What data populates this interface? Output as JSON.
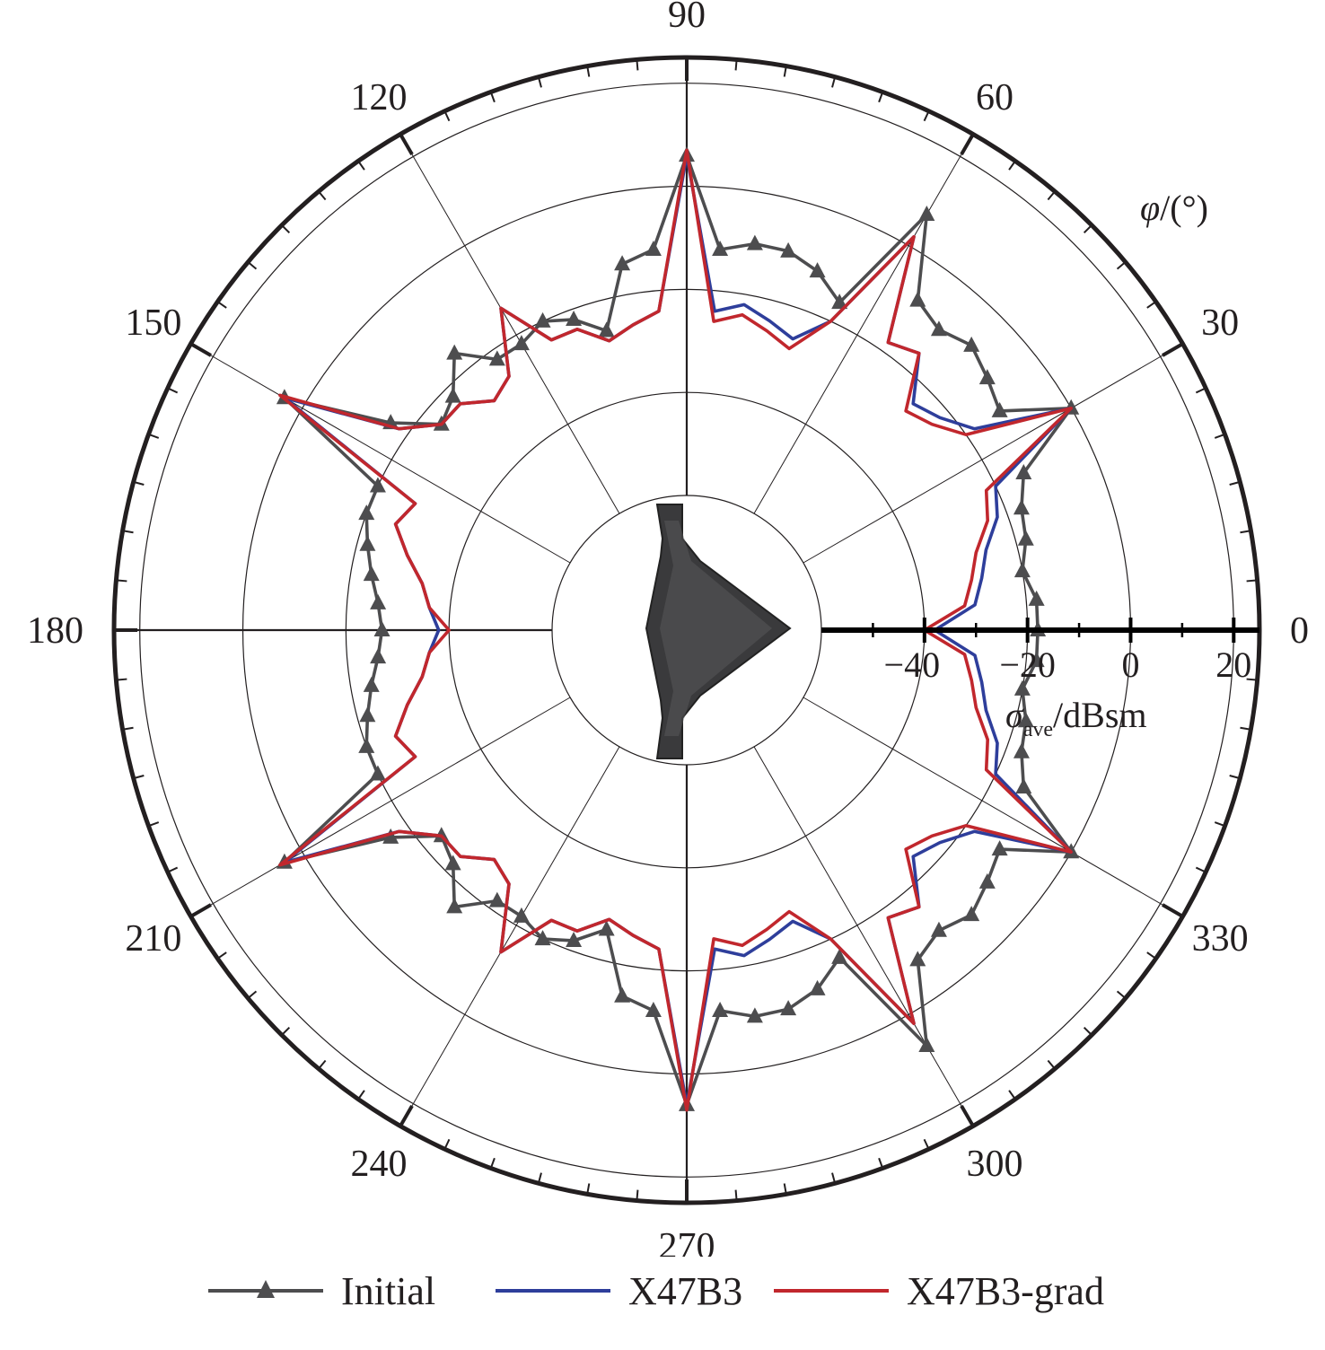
{
  "chart_data": {
    "type": "polar-line",
    "angular_axis": {
      "title_symbol": "φ",
      "title_unit": "/(°)",
      "tick_labels": [
        "0",
        "30",
        "60",
        "90",
        "120",
        "150",
        "180",
        "210",
        "240",
        "270",
        "300",
        "330"
      ],
      "tick_values_deg": [
        0,
        30,
        60,
        90,
        120,
        150,
        180,
        210,
        240,
        270,
        300,
        330
      ]
    },
    "radial_axis": {
      "title_symbol": "σ",
      "title_subscript": "ave",
      "title_unit": "/dBsm",
      "tick_labels": [
        "−40",
        "−20",
        "0",
        "20"
      ],
      "tick_values": [
        -40,
        -20,
        0,
        20
      ],
      "range": [
        -60,
        25
      ]
    },
    "grid": true,
    "legend_position": "bottom",
    "series": [
      {
        "name": "Initial",
        "color": "#4d4d4f",
        "marker": "triangle",
        "angles": [
          0,
          5,
          10,
          15,
          20,
          25,
          30,
          35,
          40,
          45,
          50,
          55,
          60,
          65,
          70,
          75,
          80,
          85,
          90,
          95,
          100,
          105,
          110,
          115,
          120,
          125,
          130,
          135,
          140,
          145,
          150,
          155,
          160,
          165,
          170,
          175,
          180
        ],
        "values": [
          -18,
          -18,
          -20,
          -18,
          -17,
          -14,
          0,
          -12,
          -10,
          -8,
          -10,
          -8,
          7,
          -16,
          -12,
          -10,
          -10,
          -12,
          6,
          -12,
          -14,
          -26,
          -22,
          -20,
          -22,
          -22,
          -16,
          -22,
          -24,
          -16,
          4,
          -20,
          -20,
          -22,
          -24,
          -26,
          -27
        ]
      },
      {
        "name": "X47B3",
        "color": "#2e3e9b",
        "marker": "none",
        "angles": [
          0,
          5,
          10,
          15,
          20,
          25,
          30,
          35,
          40,
          45,
          50,
          55,
          60,
          65,
          70,
          75,
          80,
          85,
          90,
          95,
          100,
          105,
          110,
          115,
          120,
          125,
          130,
          135,
          140,
          145,
          150,
          155,
          160,
          165,
          170,
          175,
          180
        ],
        "values": [
          -38,
          -30,
          -28,
          -26,
          -22,
          -20,
          0,
          -18,
          -22,
          -24,
          -16,
          -18,
          2,
          -20,
          -26,
          -24,
          -22,
          -24,
          6,
          -24,
          -26,
          -28,
          -24,
          -24,
          -14,
          -26,
          -28,
          -24,
          -24,
          -18,
          4,
          -28,
          -26,
          -30,
          -34,
          -36,
          -38
        ]
      },
      {
        "name": "X47B3-grad",
        "color": "#c1272d",
        "marker": "none",
        "angles": [
          0,
          5,
          10,
          15,
          20,
          25,
          30,
          35,
          40,
          45,
          50,
          55,
          60,
          65,
          70,
          75,
          80,
          85,
          90,
          95,
          100,
          105,
          110,
          115,
          120,
          125,
          130,
          135,
          140,
          145,
          150,
          155,
          160,
          165,
          170,
          175,
          180
        ],
        "values": [
          -40,
          -32,
          -30,
          -28,
          -24,
          -22,
          0,
          -20,
          -24,
          -26,
          -16,
          -18,
          2,
          -20,
          -28,
          -26,
          -24,
          -26,
          7,
          -24,
          -26,
          -28,
          -24,
          -24,
          -14,
          -26,
          -28,
          -24,
          -24,
          -18,
          5,
          -28,
          -26,
          -30,
          -34,
          -36,
          -40
        ]
      }
    ],
    "symmetry": "mirror about 0°–180° axis"
  },
  "legend": {
    "items": [
      {
        "label": "Initial",
        "color": "#4d4d4f",
        "marker": "triangle"
      },
      {
        "label": "X47B3",
        "color": "#2e3e9b",
        "marker": "none"
      },
      {
        "label": "X47B3-grad",
        "color": "#c1272d",
        "marker": "none"
      }
    ]
  }
}
